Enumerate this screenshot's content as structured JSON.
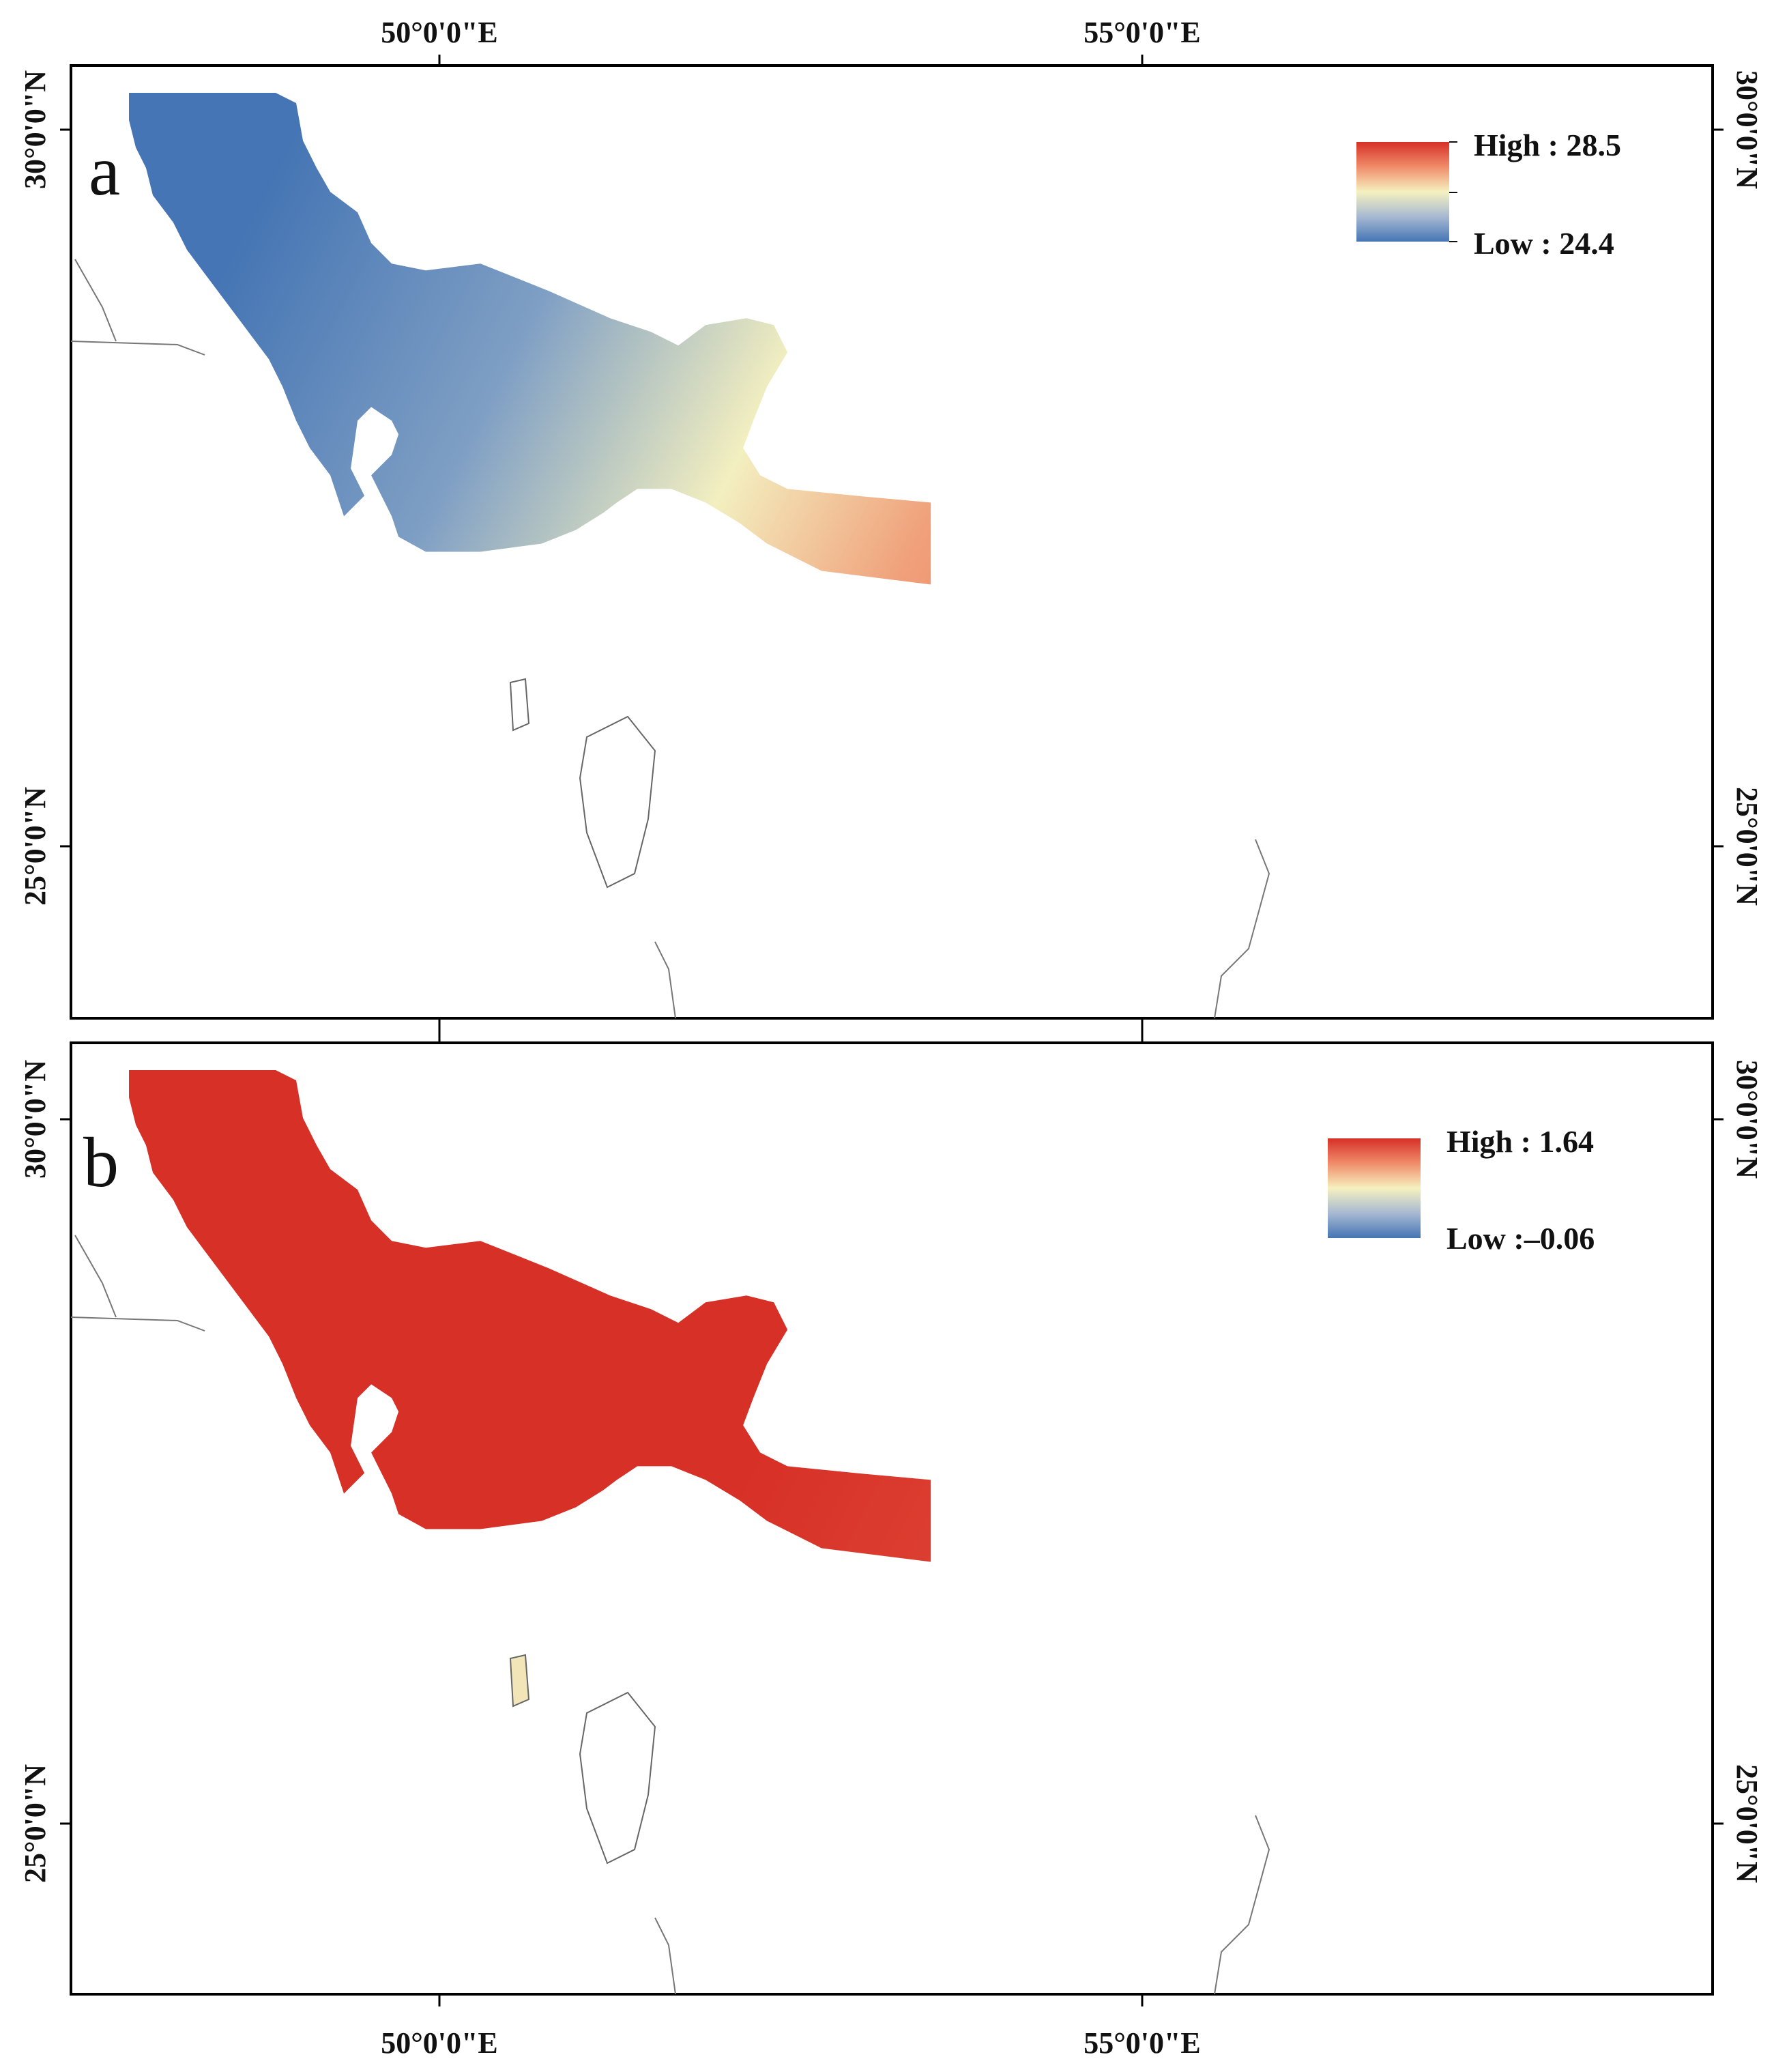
{
  "axes": {
    "top_lon": [
      "50°0'0\"E",
      "55°0'0\"E"
    ],
    "bottom_lon": [
      "50°0'0\"E",
      "55°0'0\"E"
    ],
    "lat_a": [
      "30°0'0\"N",
      "25°0'0\"N"
    ],
    "lat_b": [
      "30°0'0\"N",
      "25°0'0\"N"
    ]
  },
  "panels": [
    {
      "letter": "a",
      "legend": {
        "high": "High : 28.5",
        "low": "Low : 24.4",
        "high_value": 28.5,
        "low_value": 24.4
      },
      "ramp": {
        "low": "#4575b4",
        "mid": "#f5f1bf",
        "high": "#d73027"
      }
    },
    {
      "letter": "b",
      "legend": {
        "high": "High : 1.64",
        "low": "Low :–0.06",
        "high_value": 1.64,
        "low_value": -0.06
      },
      "ramp": {
        "low": "#4575b4",
        "mid": "#f5f1bf",
        "high": "#d73027"
      }
    }
  ]
}
